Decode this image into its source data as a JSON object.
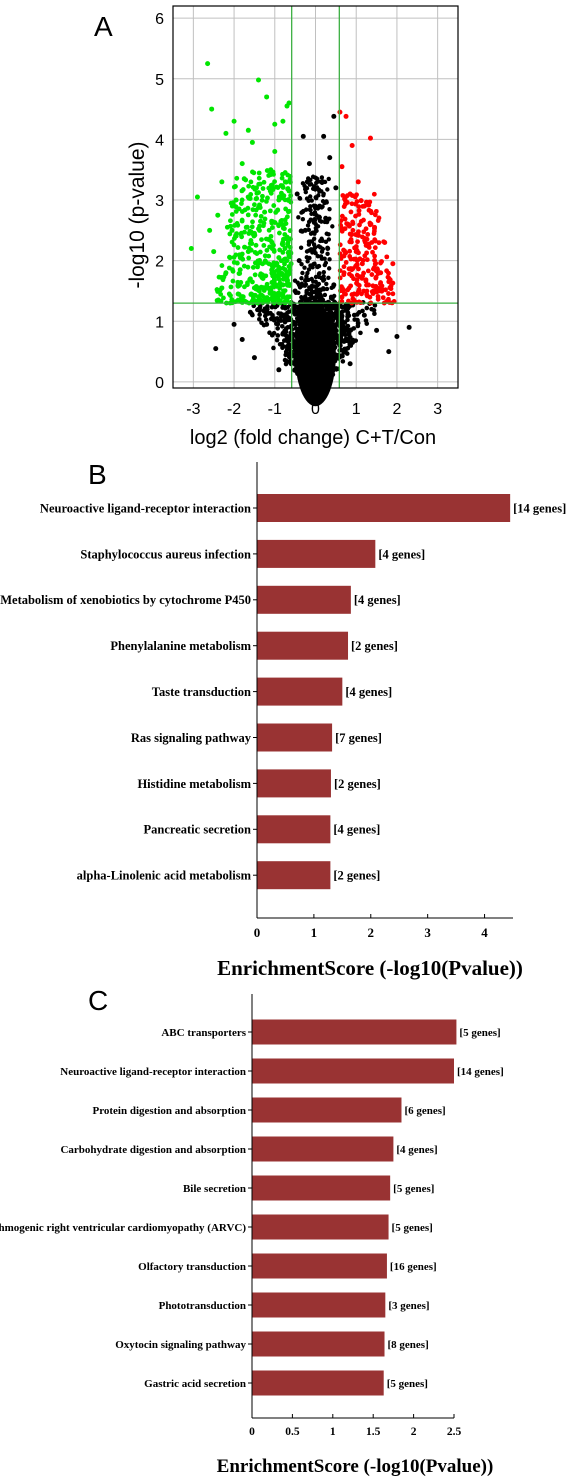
{
  "colors": {
    "up": "#ff0000",
    "down": "#00e600",
    "ns": "#000000",
    "threshold": "#3cb043",
    "grid": "#c0c0c0",
    "bar": "#993333"
  },
  "chart_data": [
    {
      "panel": "A",
      "type": "scatter",
      "title": "",
      "xlabel": "log2 (fold change) C+T/Con",
      "ylabel": "-log10 (p-value)",
      "xlim": [
        -3.5,
        3.5
      ],
      "ylim": [
        -0.1,
        6.2
      ],
      "xticks": [
        -3,
        -2,
        -1,
        0,
        1,
        2,
        3
      ],
      "yticks": [
        0,
        1,
        2,
        3,
        4,
        5,
        6
      ],
      "grid": true,
      "thresholds": {
        "x": [
          -0.585,
          0.585
        ],
        "y": 1.3
      },
      "series": [
        {
          "category": "down",
          "color": "down",
          "points": [
            [
              -2.65,
              5.25
            ],
            [
              -2.55,
              4.5
            ],
            [
              -2.9,
              3.05
            ],
            [
              -3.05,
              2.2
            ],
            [
              -2.2,
              4.1
            ],
            [
              -2.0,
              4.3
            ],
            [
              -1.65,
              4.15
            ],
            [
              -1.4,
              4.98
            ],
            [
              -1.2,
              4.7
            ],
            [
              -0.65,
              4.6
            ],
            [
              -0.7,
              4.55
            ],
            [
              -1.8,
              3.6
            ],
            [
              -2.4,
              2.75
            ],
            [
              -1.55,
              3.95
            ],
            [
              -1.0,
              4.25
            ],
            [
              -0.8,
              4.3
            ],
            [
              -2.6,
              2.5
            ],
            [
              -2.3,
              3.3
            ],
            [
              -1.95,
              3.0
            ],
            [
              -1.7,
              2.55
            ],
            [
              -1.45,
              3.2
            ],
            [
              -1.25,
              2.8
            ],
            [
              -1.1,
              3.5
            ],
            [
              -0.9,
              3.0
            ],
            [
              -0.75,
              2.2
            ],
            [
              -2.1,
              2.05
            ],
            [
              -1.85,
              1.85
            ],
            [
              -1.6,
              1.7
            ],
            [
              -1.3,
              1.95
            ],
            [
              -1.05,
              1.75
            ],
            [
              -0.8,
              1.6
            ],
            [
              -2.3,
              1.55
            ],
            [
              -1.9,
              1.45
            ],
            [
              -1.4,
              1.4
            ],
            [
              -0.95,
              1.45
            ],
            [
              -0.7,
              1.35
            ],
            [
              -1.15,
              2.35
            ],
            [
              -1.5,
              2.45
            ],
            [
              -0.85,
              2.65
            ],
            [
              -2.05,
              2.5
            ],
            [
              -1.75,
              3.35
            ],
            [
              -1.0,
              3.8
            ],
            [
              -0.65,
              3.15
            ],
            [
              -2.5,
              2.15
            ],
            [
              -1.2,
              1.55
            ],
            [
              -0.6,
              1.95
            ],
            [
              -1.65,
              2.15
            ],
            [
              -2.2,
              1.8
            ],
            [
              -0.9,
              2.05
            ],
            [
              -1.35,
              2.65
            ]
          ]
        },
        {
          "category": "up",
          "color": "up",
          "points": [
            [
              0.6,
              4.45
            ],
            [
              0.75,
              4.38
            ],
            [
              1.35,
              4.02
            ],
            [
              0.9,
              3.9
            ],
            [
              0.65,
              3.55
            ],
            [
              1.05,
              3.3
            ],
            [
              1.2,
              2.9
            ],
            [
              1.45,
              2.55
            ],
            [
              1.7,
              2.3
            ],
            [
              1.9,
              1.95
            ],
            [
              0.8,
              2.6
            ],
            [
              1.0,
              2.15
            ],
            [
              0.7,
              1.8
            ],
            [
              1.3,
              1.6
            ],
            [
              1.55,
              1.5
            ],
            [
              0.65,
              1.4
            ],
            [
              0.95,
              1.45
            ],
            [
              1.15,
              1.95
            ],
            [
              0.85,
              3.1
            ],
            [
              1.6,
              1.8
            ]
          ]
        },
        {
          "category": "ns",
          "color": "ns",
          "points": [
            [
              -0.3,
              4.05
            ],
            [
              0.2,
              4.05
            ],
            [
              0.45,
              4.38
            ],
            [
              -0.15,
              3.6
            ],
            [
              0.35,
              3.7
            ],
            [
              -0.45,
              3.1
            ],
            [
              0.1,
              2.9
            ],
            [
              0.5,
              3.2
            ],
            [
              -0.25,
              2.5
            ],
            [
              0.3,
              2.2
            ],
            [
              -0.4,
              2.0
            ],
            [
              0.05,
              1.9
            ],
            [
              -0.5,
              1.5
            ],
            [
              0.45,
              1.6
            ],
            [
              -0.2,
              3.3
            ],
            [
              0.25,
              2.7
            ],
            [
              -1.6,
              1.15
            ],
            [
              -1.2,
              0.95
            ],
            [
              -0.8,
              1.1
            ],
            [
              1.2,
              1.1
            ],
            [
              1.5,
              0.85
            ],
            [
              -2.0,
              0.95
            ],
            [
              2.0,
              0.75
            ],
            [
              -0.6,
              0.5
            ],
            [
              0.6,
              0.6
            ],
            [
              -1.5,
              0.4
            ],
            [
              -1.8,
              0.7
            ],
            [
              1.8,
              0.5
            ],
            [
              -2.45,
              0.55
            ],
            [
              2.3,
              0.9
            ],
            [
              0.85,
              0.3
            ],
            [
              -0.9,
              0.2
            ]
          ]
        }
      ],
      "core_cloud": "dense cluster around x = 0, y < 1.3"
    },
    {
      "panel": "B",
      "type": "bar",
      "orientation": "horizontal",
      "title": "",
      "xlabel": "EnrichmentScore (-log10(Pvalue))",
      "ylabel": "",
      "xlim": [
        0,
        4.5
      ],
      "xticks": [
        0,
        1,
        2,
        3,
        4
      ],
      "categories": [
        "Neuroactive ligand-receptor interaction",
        "Staphylococcus aureus infection",
        "Metabolism of xenobiotics by cytochrome P450",
        "Phenylalanine metabolism",
        "Taste transduction",
        "Ras signaling pathway",
        "Histidine metabolism",
        "Pancreatic secretion",
        "alpha-Linolenic acid metabolism"
      ],
      "values": [
        4.45,
        2.08,
        1.65,
        1.6,
        1.5,
        1.32,
        1.3,
        1.29,
        1.29
      ],
      "bar_labels": [
        "[14 genes]",
        "[4 genes]",
        "[4 genes]",
        "[2 genes]",
        "[4 genes]",
        "[7 genes]",
        "[2 genes]",
        "[4 genes]",
        "[2 genes]"
      ]
    },
    {
      "panel": "C",
      "type": "bar",
      "orientation": "horizontal",
      "title": "",
      "xlabel": "EnrichmentScore (-log10(Pvalue))",
      "ylabel": "",
      "xlim": [
        0,
        2.5
      ],
      "xticks": [
        0,
        0.5,
        1,
        1.5,
        2,
        2.5
      ],
      "categories": [
        "ABC transporters",
        "Neuroactive ligand-receptor interaction",
        "Protein digestion and absorption",
        "Carbohydrate digestion and absorption",
        "Bile secretion",
        "Arrhythmogenic right ventricular cardiomyopathy (ARVC)",
        "Olfactory transduction",
        "Phototransduction",
        "Oxytocin signaling pathway",
        "Gastric acid secretion"
      ],
      "values": [
        2.53,
        2.5,
        1.85,
        1.75,
        1.71,
        1.69,
        1.67,
        1.65,
        1.64,
        1.63
      ],
      "bar_labels": [
        "[5 genes]",
        "[14 genes]",
        "[6 genes]",
        "[4 genes]",
        "[5 genes]",
        "[5 genes]",
        "[16 genes]",
        "[3 genes]",
        "[8 genes]",
        "[5 genes]"
      ]
    }
  ]
}
